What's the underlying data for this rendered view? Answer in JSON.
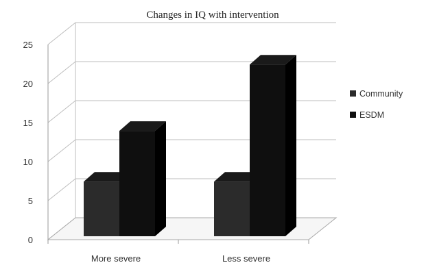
{
  "chart_data": {
    "type": "bar",
    "title": "Changes in IQ with intervention",
    "categories": [
      "More severe",
      "Less severe"
    ],
    "series": [
      {
        "name": "Community",
        "values": [
          7,
          7
        ]
      },
      {
        "name": "ESDM",
        "values": [
          13.5,
          22
        ]
      }
    ],
    "ylim": [
      0,
      25
    ],
    "yticks": [
      0,
      5,
      10,
      15,
      20,
      25
    ],
    "grid": true,
    "legend": "right",
    "style": "3d",
    "colors": {
      "Community": "#2b2b2b",
      "ESDM": "#0f0f0f"
    }
  }
}
